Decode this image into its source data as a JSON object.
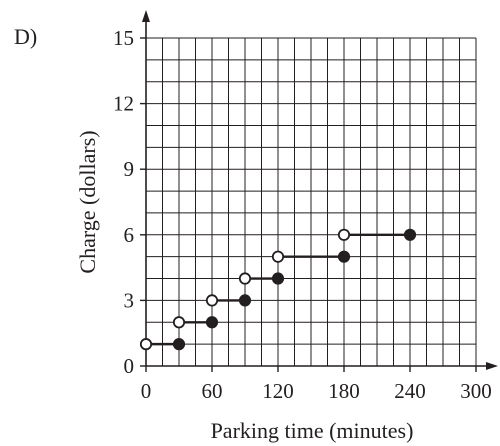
{
  "chart_data": {
    "type": "step",
    "panel_label": "D)",
    "xlabel": "Parking time (minutes)",
    "ylabel": "Charge (dollars)",
    "xlim": [
      0,
      300
    ],
    "ylim": [
      0,
      15
    ],
    "x_ticks": [
      0,
      60,
      120,
      180,
      240,
      300
    ],
    "y_ticks": [
      0,
      3,
      6,
      9,
      12,
      15
    ],
    "x_grid_step": 15,
    "y_grid_step": 1,
    "grid": true,
    "segments": [
      {
        "x_start": 0,
        "x_end": 30,
        "y": 1,
        "start_closed": false,
        "end_closed": true
      },
      {
        "x_start": 30,
        "x_end": 60,
        "y": 2,
        "start_closed": false,
        "end_closed": true
      },
      {
        "x_start": 60,
        "x_end": 90,
        "y": 3,
        "start_closed": false,
        "end_closed": true
      },
      {
        "x_start": 90,
        "x_end": 120,
        "y": 4,
        "start_closed": false,
        "end_closed": true
      },
      {
        "x_start": 120,
        "x_end": 180,
        "y": 5,
        "start_closed": false,
        "end_closed": true
      },
      {
        "x_start": 180,
        "x_end": 240,
        "y": 6,
        "start_closed": false,
        "end_closed": true
      }
    ],
    "colors": {
      "line": "#231f20",
      "grid": "#231f20",
      "open_fill": "#ffffff"
    }
  }
}
